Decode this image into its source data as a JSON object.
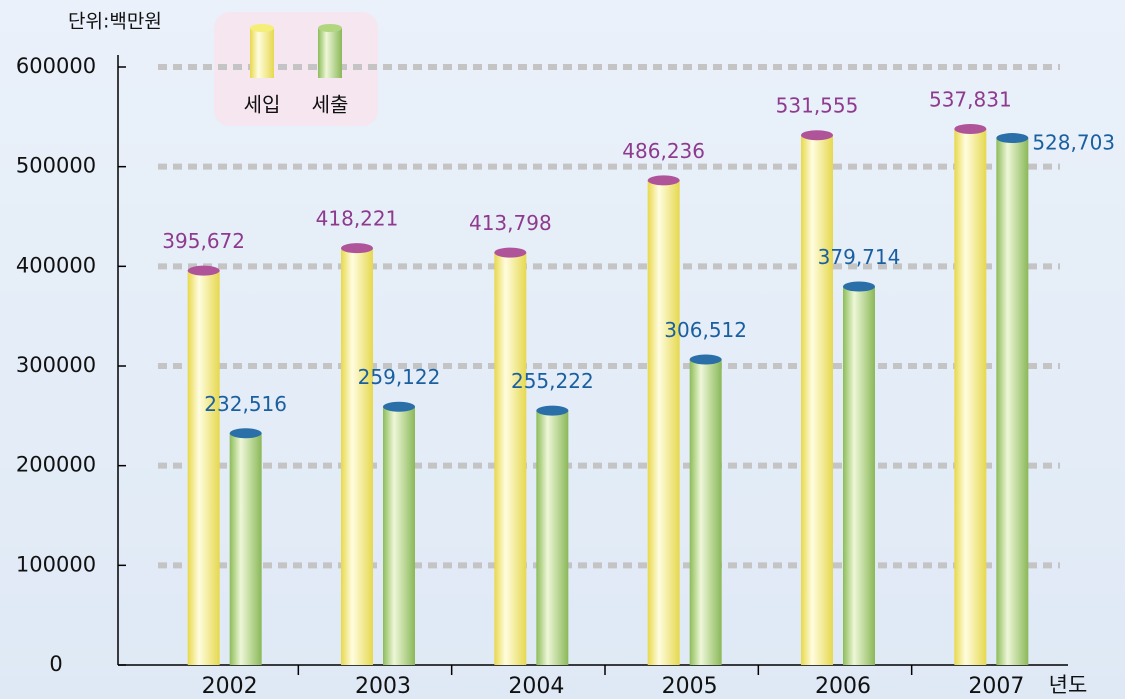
{
  "chart_data": {
    "type": "bar",
    "unit_label": "단위:백만원",
    "x_label": "년도",
    "categories": [
      "2002",
      "2003",
      "2004",
      "2005",
      "2006",
      "2007"
    ],
    "series": [
      {
        "name": "세입",
        "color": "#f5ee78",
        "cap_color": "#b0549a",
        "label_color": "#8e3a8e",
        "values": [
          395672,
          418221,
          413798,
          486236,
          531555,
          537831
        ],
        "value_labels": [
          "395,672",
          "418,221",
          "413,798",
          "486,236",
          "531,555",
          "537,831"
        ]
      },
      {
        "name": "세출",
        "color": "#b2d680",
        "cap_color": "#2a6fa8",
        "label_color": "#1a5fa0",
        "values": [
          232516,
          259122,
          255222,
          306512,
          379714,
          528703
        ],
        "value_labels": [
          "232,516",
          "259,122",
          "255,222",
          "306,512",
          "379,714",
          "528,703"
        ]
      }
    ],
    "ylim": [
      0,
      600000
    ],
    "yticks": [
      0,
      100000,
      200000,
      300000,
      400000,
      500000,
      600000
    ],
    "grid": true
  }
}
